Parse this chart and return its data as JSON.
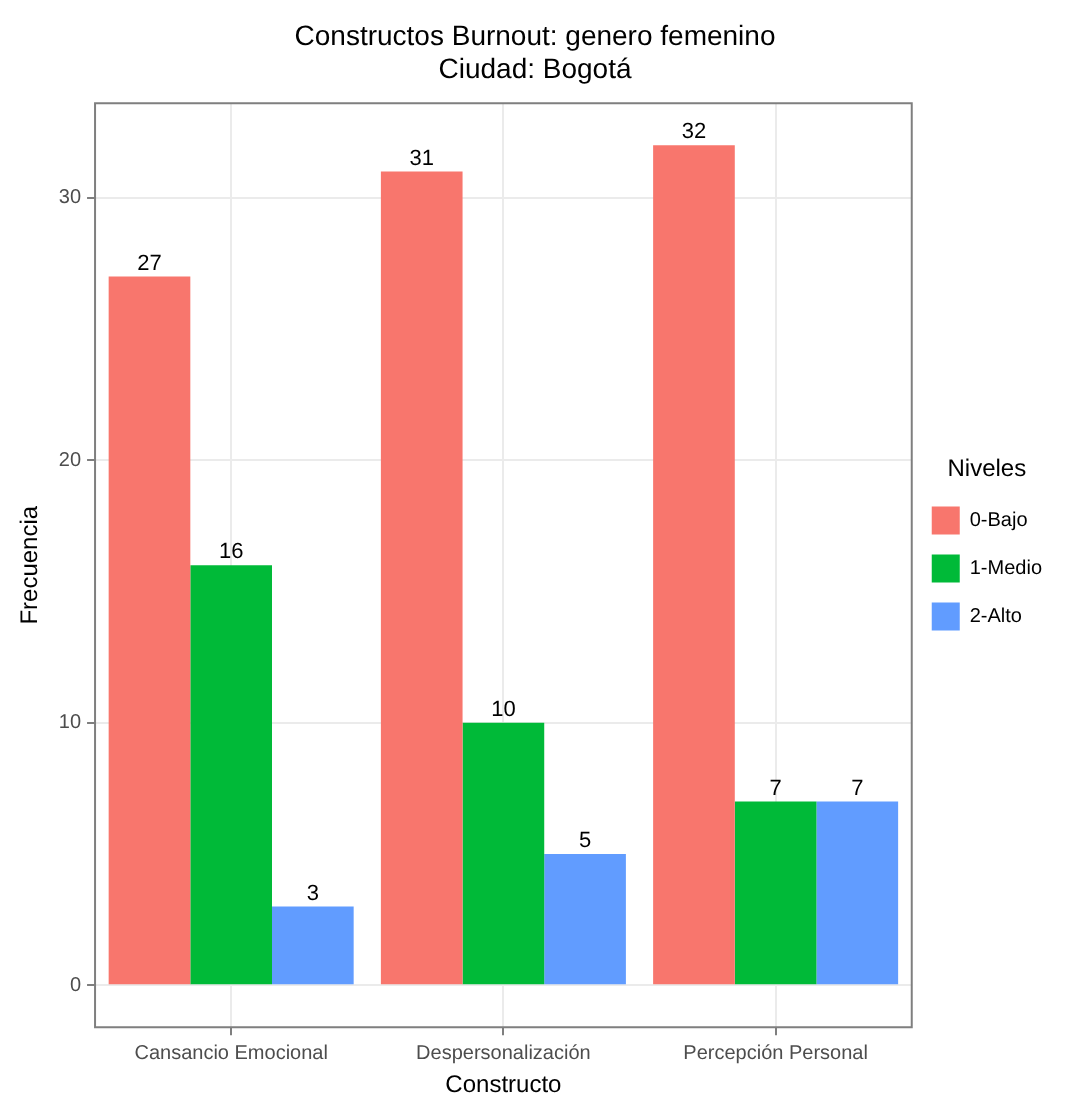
{
  "chart_data": {
    "type": "bar",
    "title": "Constructos Burnout: genero femenino",
    "subtitle": "Ciudad: Bogotá",
    "xlabel": "Constructo",
    "ylabel": "Frecuencia",
    "legend_title": "Niveles",
    "categories": [
      "Cansancio Emocional",
      "Despersonalización",
      "Percepción Personal"
    ],
    "series": [
      {
        "name": "0-Bajo",
        "color": "#f8766d",
        "values": [
          27,
          31,
          32
        ]
      },
      {
        "name": "1-Medio",
        "color": "#00ba38",
        "values": [
          16,
          10,
          7
        ]
      },
      {
        "name": "2-Alto",
        "color": "#619cff",
        "values": [
          3,
          5,
          7
        ]
      }
    ],
    "ylim": [
      -1.6,
      33.6
    ],
    "yticks": [
      0,
      10,
      20,
      30
    ],
    "grid": true,
    "legend": "right",
    "data_labels": true
  }
}
